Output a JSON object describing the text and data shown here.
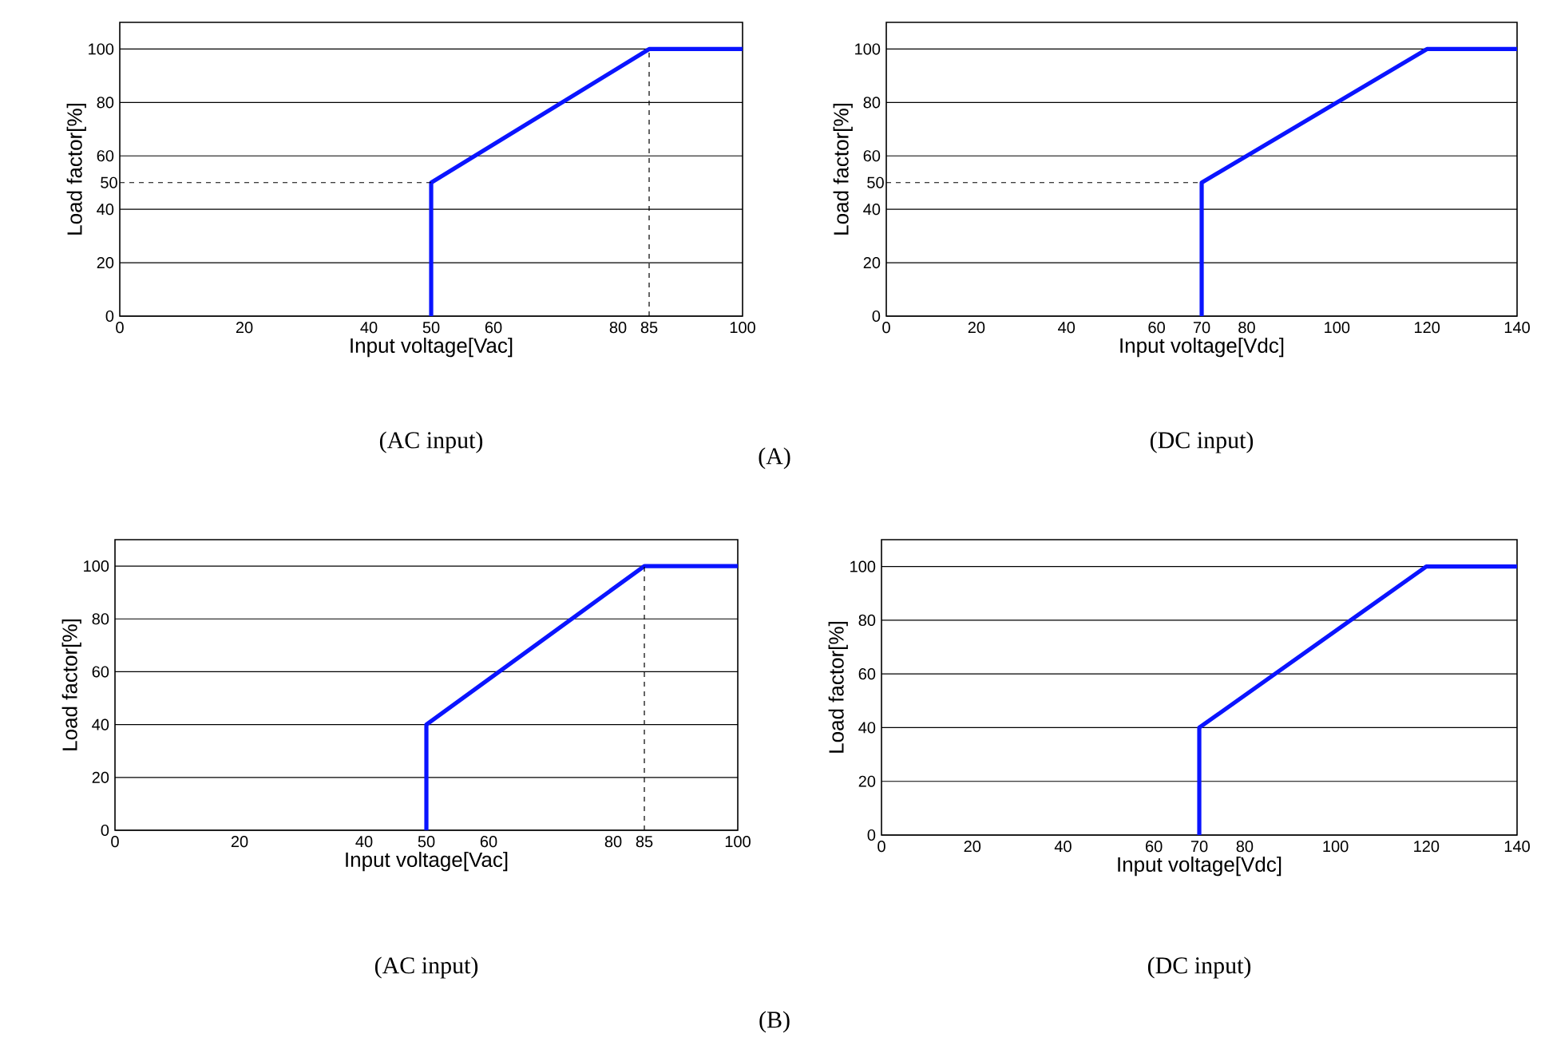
{
  "chart_data": [
    {
      "type": "line",
      "xlabel": "Input voltage[Vac]",
      "ylabel": "Load factor[%]",
      "xlim": [
        0,
        100
      ],
      "ylim": [
        0,
        110
      ],
      "xticks": [
        0,
        20,
        40,
        50,
        60,
        80,
        85,
        100
      ],
      "yticks": [
        0,
        20,
        40,
        60,
        80,
        100
      ],
      "grid": "y",
      "marker": "none",
      "series": [
        {
          "color": "#0a14ff",
          "x": [
            50,
            50,
            85,
            100
          ],
          "values": [
            0,
            50,
            100,
            100
          ]
        }
      ],
      "ref_lines": [
        {
          "axis": "y",
          "value": 50,
          "label": "50",
          "line_style": "dashed"
        },
        {
          "axis": "x",
          "value": 85,
          "line_style": "dashed"
        }
      ],
      "annotations": [
        "(AC input)",
        "(A)"
      ]
    },
    {
      "type": "line",
      "xlabel": "Input voltage[Vdc]",
      "ylabel": "Load factor[%]",
      "xlim": [
        0,
        140
      ],
      "ylim": [
        0,
        110
      ],
      "xticks": [
        0,
        20,
        40,
        60,
        70,
        80,
        100,
        120,
        140
      ],
      "yticks": [
        0,
        20,
        40,
        60,
        80,
        100
      ],
      "grid": "y",
      "marker": "none",
      "series": [
        {
          "color": "#0a14ff",
          "x": [
            70,
            70,
            120,
            140
          ],
          "values": [
            0,
            50,
            100,
            100
          ]
        }
      ],
      "ref_lines": [
        {
          "axis": "y",
          "value": 50,
          "label": "50",
          "line_style": "dashed"
        }
      ],
      "annotations": [
        "(DC input)"
      ]
    },
    {
      "type": "line",
      "xlabel": "Input voltage[Vac]",
      "ylabel": "Load factor[%]",
      "xlim": [
        0,
        100
      ],
      "ylim": [
        0,
        110
      ],
      "xticks": [
        0,
        20,
        40,
        50,
        60,
        80,
        85,
        100
      ],
      "yticks": [
        0,
        20,
        40,
        60,
        80,
        100
      ],
      "grid": "y",
      "marker": "none",
      "series": [
        {
          "color": "#0a14ff",
          "x": [
            50,
            50,
            85,
            100
          ],
          "values": [
            0,
            40,
            100,
            100
          ]
        }
      ],
      "ref_lines": [
        {
          "axis": "x",
          "value": 85,
          "line_style": "dashed"
        }
      ],
      "annotations": [
        "(AC input)",
        "(B)"
      ]
    },
    {
      "type": "line",
      "xlabel": "Input voltage[Vdc]",
      "ylabel": "Load factor[%]",
      "xlim": [
        0,
        140
      ],
      "ylim": [
        0,
        110
      ],
      "xticks": [
        0,
        20,
        40,
        60,
        70,
        80,
        100,
        120,
        140
      ],
      "yticks": [
        0,
        20,
        40,
        60,
        80,
        100
      ],
      "grid": "y",
      "marker": "none",
      "series": [
        {
          "color": "#0a14ff",
          "x": [
            70,
            70,
            120,
            140
          ],
          "values": [
            0,
            40,
            100,
            100
          ]
        }
      ],
      "annotations": [
        "(DC input)"
      ]
    }
  ]
}
